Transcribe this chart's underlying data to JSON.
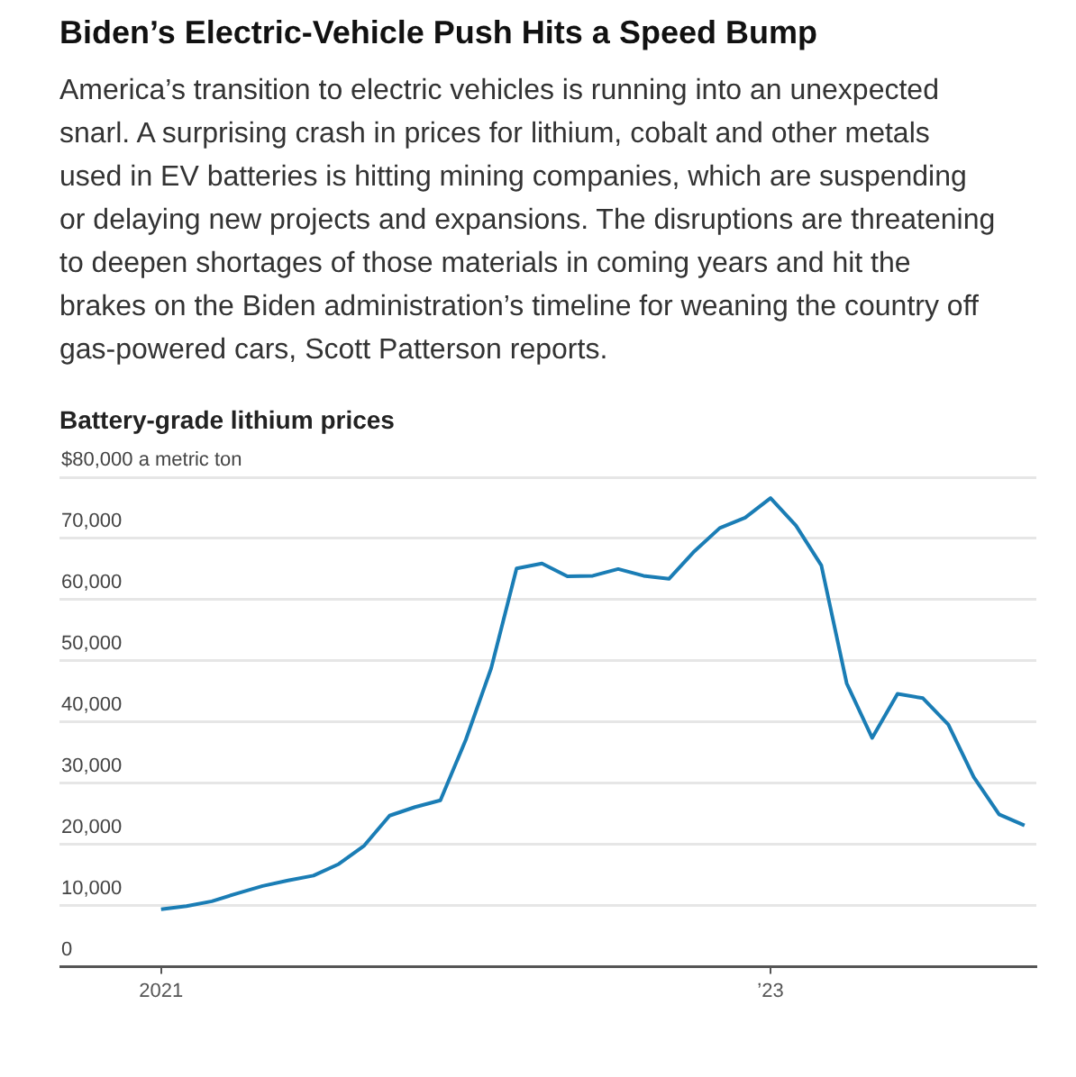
{
  "chart_data": {
    "type": "line",
    "title": "Battery-grade lithium prices",
    "annotations": [
      "Biden’s Electric-Vehicle Push Hits a Speed Bump",
      "America’s transition to electric vehicles is running into an unexpected snarl. A surprising crash in prices for lithium, cobalt and other metals used in EV batteries is hitting mining companies, which are suspending or delaying new projects and expansions. The disruptions are threatening to deepen shortages of those materials in coming years and hit the brakes on the Biden administration’s timeline for weaning the country off gas-powered cars, Scott Patterson reports."
    ],
    "x": [
      "2021-01",
      "2021-02",
      "2021-03",
      "2021-04",
      "2021-05",
      "2021-06",
      "2021-07",
      "2021-08",
      "2021-09",
      "2021-10",
      "2021-11",
      "2021-12",
      "2022-01",
      "2022-02",
      "2022-03",
      "2022-04",
      "2022-05",
      "2022-06",
      "2022-07",
      "2022-08",
      "2022-09",
      "2022-10",
      "2022-11",
      "2022-12",
      "2023-01",
      "2023-02",
      "2023-03",
      "2023-04",
      "2023-05",
      "2023-06",
      "2023-07",
      "2023-08",
      "2023-09",
      "2023-10",
      "2023-11"
    ],
    "series": [
      {
        "color": "#1a7db5",
        "values": [
          9400,
          9900,
          10700,
          12000,
          13200,
          14100,
          14900,
          16800,
          19800,
          24700,
          26100,
          27200,
          37100,
          48800,
          65100,
          65900,
          63800,
          63900,
          65000,
          63900,
          63400,
          67900,
          71700,
          73400,
          76600,
          72100,
          65600,
          46300,
          37400,
          44600,
          43900,
          39600,
          31000,
          24900,
          23100
        ]
      }
    ],
    "xlim": [
      "2020-09",
      "2023-11-15"
    ],
    "xticks": [
      "2021",
      {
        "value": "2023",
        "label": "’23"
      }
    ],
    "ylim": [
      0,
      80000
    ],
    "yticks": [
      0,
      {
        "value": 10000,
        "label": "10,000"
      },
      {
        "value": 20000,
        "label": "20,000"
      },
      {
        "value": 30000,
        "label": "30,000"
      },
      {
        "value": 40000,
        "label": "40,000"
      },
      {
        "value": 50000,
        "label": "50,000"
      },
      {
        "value": 60000,
        "label": "60,000"
      },
      {
        "value": 70000,
        "label": "70,000"
      },
      {
        "value": 80000,
        "label": "$80,000 a metric ton"
      }
    ],
    "grid": "y",
    "legend": false,
    "marker": "none",
    "line_style": "solid"
  }
}
